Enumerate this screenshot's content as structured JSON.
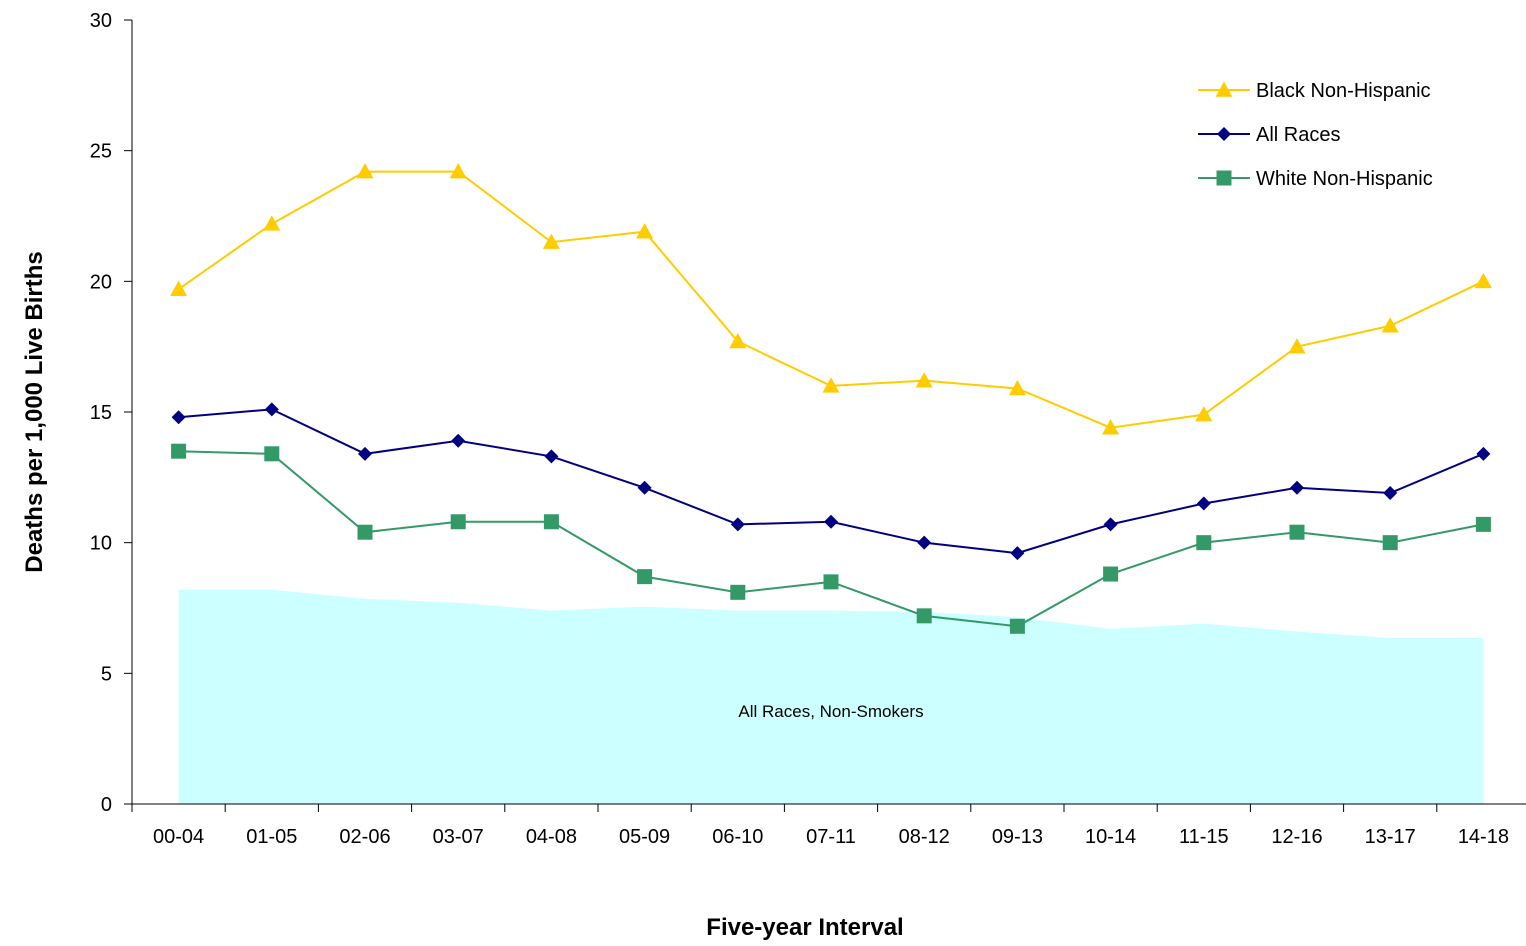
{
  "chart_data": {
    "type": "line",
    "title": "",
    "xlabel": "Five-year Interval",
    "ylabel": "Deaths per 1,000 Live Births",
    "ylim": [
      0,
      30
    ],
    "yticks": [
      0,
      5,
      10,
      15,
      20,
      25,
      30
    ],
    "grid": false,
    "legend_position": "top-right",
    "categories": [
      "00-04",
      "01-05",
      "02-06",
      "03-07",
      "04-08",
      "05-09",
      "06-10",
      "07-11",
      "08-12",
      "09-13",
      "10-14",
      "11-15",
      "12-16",
      "13-17",
      "14-18"
    ],
    "area": {
      "label": "All Races, Non-Smokers",
      "color": "#ccffff",
      "values": [
        8.2,
        8.2,
        7.85,
        7.7,
        7.4,
        7.55,
        7.4,
        7.4,
        7.35,
        7.15,
        6.7,
        6.9,
        6.6,
        6.35,
        6.35
      ]
    },
    "series": [
      {
        "name": "Black Non-Hispanic",
        "color": "#ffcc00",
        "marker": "triangle",
        "values": [
          19.7,
          22.2,
          24.2,
          24.2,
          21.5,
          21.9,
          17.7,
          16.0,
          16.2,
          15.9,
          14.4,
          14.9,
          17.5,
          18.3,
          20.0
        ]
      },
      {
        "name": "All Races",
        "color": "#000080",
        "marker": "diamond",
        "values": [
          14.8,
          15.1,
          13.4,
          13.9,
          13.3,
          12.1,
          10.7,
          10.8,
          10.0,
          9.6,
          10.7,
          11.5,
          12.1,
          11.9,
          13.4
        ]
      },
      {
        "name": "White Non-Hispanic",
        "color": "#339966",
        "marker": "square",
        "values": [
          13.5,
          13.4,
          10.4,
          10.8,
          10.8,
          8.7,
          8.1,
          8.5,
          7.2,
          6.8,
          8.8,
          10.0,
          10.4,
          10.0,
          10.7
        ]
      }
    ]
  }
}
